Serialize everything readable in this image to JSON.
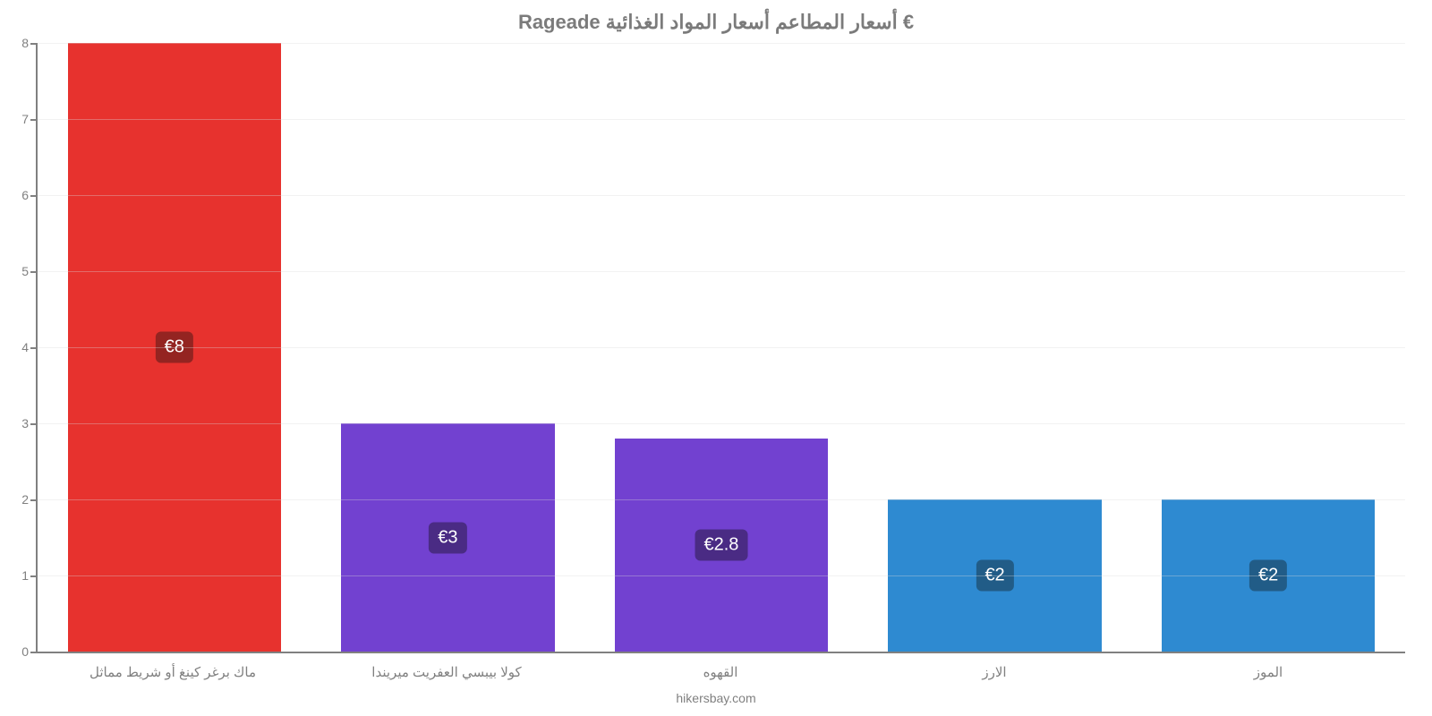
{
  "chart": {
    "type": "bar",
    "title": "Rageade أسعار المطاعم أسعار المواد الغذائية €",
    "title_color": "#7b7b7b",
    "title_fontsize": 22,
    "source": "hikersbay.com",
    "background_color": "#ffffff",
    "axis_color": "#808080",
    "grid_color": "#d9d9d9",
    "ylim_min": 0,
    "ylim_max": 8,
    "ytick_step": 1,
    "yticks": [
      0,
      1,
      2,
      3,
      4,
      5,
      6,
      7,
      8
    ],
    "bar_width": 0.78,
    "label_fontsize": 20,
    "categories": [
      "ماك برغر كينغ أو شريط مماثل",
      "كولا بيبسي العفريت ميريندا",
      "القهوه",
      "الارز",
      "الموز"
    ],
    "values": [
      8,
      3,
      2.8,
      2,
      2
    ],
    "value_labels": [
      "€8",
      "€3",
      "€2.8",
      "€2",
      "€2"
    ],
    "bar_colors": [
      "#e7322e",
      "#7241d0",
      "#7241d0",
      "#2e8ad1",
      "#2e8ad1"
    ],
    "label_bg_colors": [
      "#942421",
      "#4a2b84",
      "#4a2b84",
      "#215c87",
      "#215c87"
    ],
    "label_text_color": "#ffffff"
  }
}
